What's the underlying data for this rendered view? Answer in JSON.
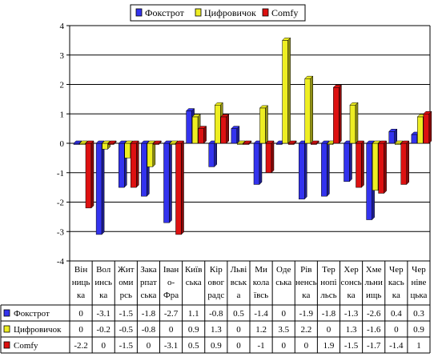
{
  "chart_data": {
    "type": "bar",
    "ylim": [
      -4,
      4
    ],
    "yticks": [
      "4",
      "3",
      "2",
      "1",
      "0",
      "-1",
      "-2",
      "-3",
      "-4"
    ],
    "grid": true,
    "legend_position": "top-center",
    "categories": [
      [
        "Він",
        "ниць",
        "ка"
      ],
      [
        "Вол",
        "инсь",
        "ка"
      ],
      [
        "Жит",
        "оми",
        "рсь"
      ],
      [
        "Зака",
        "рпат",
        "ська"
      ],
      [
        "Іван",
        "о-",
        "Фра"
      ],
      [
        "Київ",
        "ська"
      ],
      [
        "Кір",
        "овог",
        "радс"
      ],
      [
        "Льві",
        "вськ",
        "а"
      ],
      [
        "Ми",
        "кола",
        "ївсь"
      ],
      [
        "Оде",
        "ська"
      ],
      [
        "Рів",
        "ненсь",
        "ка"
      ],
      [
        "Тер",
        "нопі",
        "льсь"
      ],
      [
        "Хер",
        "сонсь",
        "ка"
      ],
      [
        "Хме",
        "льни",
        "ищь"
      ],
      [
        "Чер",
        "кась",
        "ка"
      ],
      [
        "Чер",
        "ніве",
        "цька"
      ]
    ],
    "series": [
      {
        "name": "Фокстрот",
        "color": "#3333ee",
        "values": [
          0,
          -3.1,
          -1.5,
          -1.8,
          -2.7,
          1.1,
          -0.8,
          0.5,
          -1.4,
          0,
          -1.9,
          -1.8,
          -1.3,
          -2.6,
          0.4,
          0.3
        ],
        "labels": [
          "0",
          "-3.1",
          "-1.5",
          "-1.8",
          "-2.7",
          "1.1",
          "-0.8",
          "0.5",
          "-1.4",
          "0",
          "-1.9",
          "-1.8",
          "-1.3",
          "-2.6",
          "0.4",
          "0.3"
        ]
      },
      {
        "name": "Цифровичок",
        "color": "#eeee22",
        "values": [
          0,
          -0.2,
          -0.5,
          -0.8,
          0,
          0.9,
          1.3,
          0,
          1.2,
          3.5,
          2.2,
          0,
          1.3,
          -1.6,
          0,
          0.9
        ],
        "labels": [
          "0",
          "-0.2",
          "-0.5",
          "-0.8",
          "0",
          "0.9",
          "1.3",
          "0",
          "1.2",
          "3.5",
          "2.2",
          "0",
          "1.3",
          "-1.6",
          "0",
          "0.9"
        ]
      },
      {
        "name": "Comfy",
        "color": "#dd1111",
        "values": [
          -2.2,
          0,
          -1.5,
          0,
          -3.1,
          0.5,
          0.9,
          0,
          -1,
          0,
          0,
          1.9,
          -1.5,
          -1.7,
          -1.4,
          1
        ],
        "labels": [
          "-2.2",
          "0",
          "-1.5",
          "0",
          "-3.1",
          "0.5",
          "0.9",
          "0",
          "-1",
          "0",
          "0",
          "1.9",
          "-1.5",
          "-1.7",
          "-1.4",
          "1"
        ]
      }
    ]
  }
}
